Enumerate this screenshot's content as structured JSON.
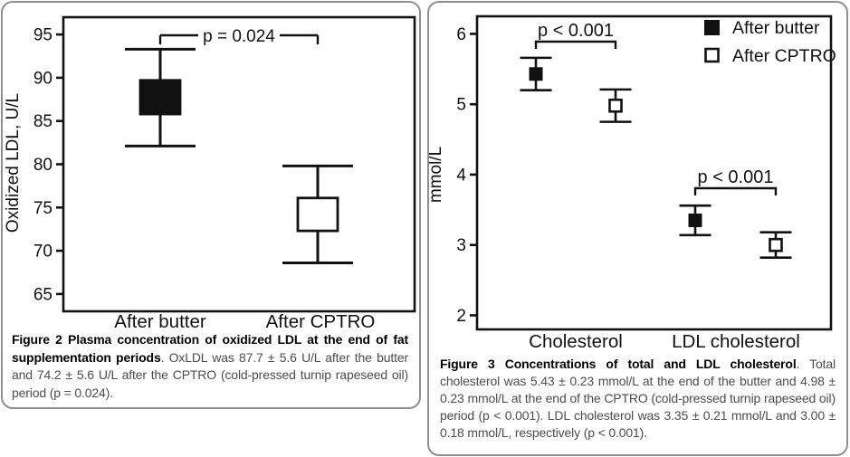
{
  "colors": {
    "ink": "#111111",
    "caption_text": "#4d4d4d",
    "caption_bold": "#000000",
    "panel_border": "#8f8f8f",
    "background": "#ffffff"
  },
  "chart_data": [
    {
      "id": "figure2",
      "type": "scatter",
      "subtype": "mean-box-with-sd-whiskers",
      "title": "",
      "xlabel": "",
      "ylabel": "Oxidized LDL, U/L",
      "ylim": [
        63,
        97
      ],
      "yticks": [
        65,
        70,
        75,
        80,
        85,
        90,
        95
      ],
      "grid": false,
      "categories": [
        "After butter",
        "After CPTRO"
      ],
      "points": [
        {
          "category": "After butter",
          "mean": 87.7,
          "sd": 5.6,
          "whisker_low": 82.1,
          "whisker_high": 93.3,
          "box_low": 85.8,
          "box_high": 89.7,
          "marker": "filled-box"
        },
        {
          "category": "After CPTRO",
          "mean": 74.2,
          "sd": 5.6,
          "whisker_low": 68.6,
          "whisker_high": 79.8,
          "box_low": 72.3,
          "box_high": 76.1,
          "marker": "open-box"
        }
      ],
      "annotations": [
        {
          "text": "p = 0.024",
          "from_category": "After butter",
          "to_category": "After CPTRO"
        }
      ]
    },
    {
      "id": "figure3",
      "type": "scatter",
      "subtype": "mean-sd-errorbars",
      "title": "",
      "xlabel": "",
      "ylabel": "mmol/L",
      "ylim": [
        1.8,
        6.25
      ],
      "yticks": [
        2,
        3,
        4,
        5,
        6
      ],
      "grid": false,
      "categories": [
        "Cholesterol",
        "LDL cholesterol"
      ],
      "series": [
        {
          "name": "After butter",
          "marker": "filled-square",
          "values": [
            {
              "category": "Cholesterol",
              "mean": 5.43,
              "sd": 0.23
            },
            {
              "category": "LDL cholesterol",
              "mean": 3.35,
              "sd": 0.21
            }
          ]
        },
        {
          "name": "After CPTRO",
          "marker": "open-square",
          "values": [
            {
              "category": "Cholesterol",
              "mean": 4.98,
              "sd": 0.23
            },
            {
              "category": "LDL cholesterol",
              "mean": 3.0,
              "sd": 0.18
            }
          ]
        }
      ],
      "annotations": [
        {
          "text": "p < 0.001",
          "category": "Cholesterol"
        },
        {
          "text": "p < 0.001",
          "category": "LDL cholesterol"
        }
      ],
      "legend": {
        "position": "top-right",
        "entries": [
          {
            "marker": "filled-square",
            "label": "After butter"
          },
          {
            "marker": "open-square",
            "label": "After CPTRO"
          }
        ]
      }
    }
  ],
  "captions": {
    "figure2": {
      "bold": "Figure 2 Plasma concentration of oxidized LDL at the end of fat supplementation periods",
      "rest": ". OxLDL was 87.7 ± 5.6 U/L after the butter and 74.2 ± 5.6 U/L after the CPTRO (cold-pressed turnip rapeseed oil) period (p = 0.024)."
    },
    "figure3": {
      "bold": "Figure 3 Concentrations of total and LDL cholesterol",
      "rest": ". Total cholesterol was 5.43 ± 0.23 mmol/L at the end of the butter and 4.98 ± 0.23 mmol/L at the end of the CPTRO (cold-pressed turnip rapeseed oil) period (p < 0.001). LDL cholesterol was 3.35 ± 0.21 mmol/L and 3.00 ± 0.18 mmol/L, respectively (p < 0.001)."
    }
  }
}
